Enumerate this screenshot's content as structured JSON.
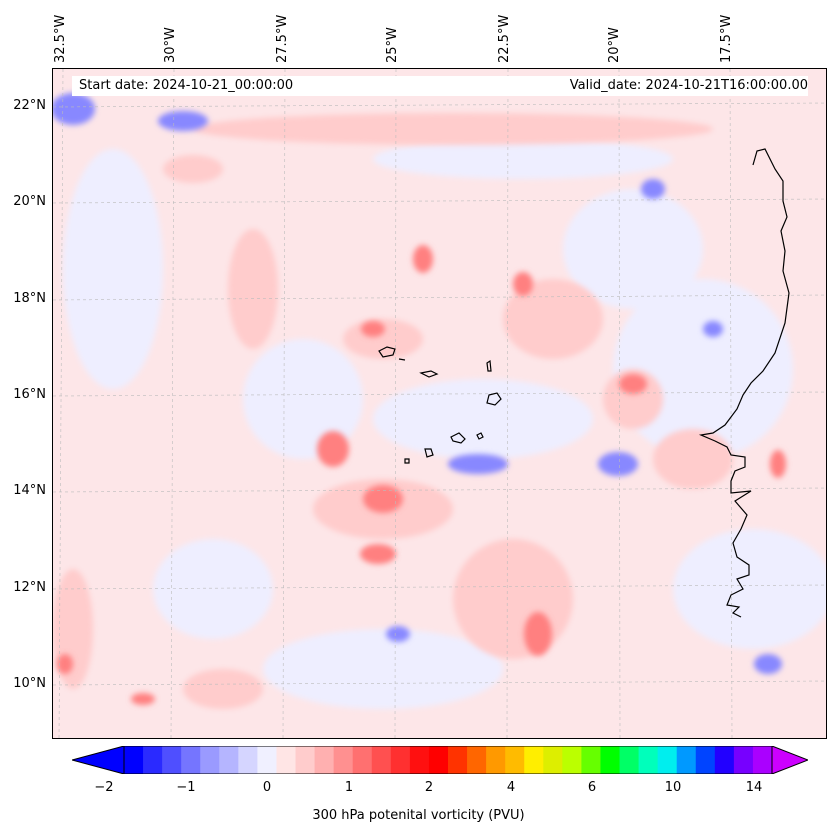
{
  "header": {
    "start_date": "Start date: 2024-10-21_00:00:00",
    "valid_date": "Valid_date: 2024-10-21T16:00:00.00"
  },
  "map": {
    "longitude_labels": [
      "32.5°W",
      "30°W",
      "27.5°W",
      "25°W",
      "22.5°W",
      "20°W",
      "17.5°W"
    ],
    "latitude_labels": [
      "22°N",
      "20°N",
      "18°N",
      "16°N",
      "14°N",
      "12°N",
      "10°N"
    ],
    "field_background_color": "#fde6e8",
    "coastline_color": "#000000"
  },
  "colorbar": {
    "label": "300 hPa potenital vorticity (PVU)",
    "tick_labels": [
      "−2",
      "−1",
      "0",
      "1",
      "2",
      "4",
      "6",
      "10",
      "14"
    ],
    "colors": [
      "#0000ff",
      "#2a2aff",
      "#4f4fff",
      "#7575ff",
      "#9a9aff",
      "#b5b5ff",
      "#d5d5ff",
      "#f0f0ff",
      "#ffe5e5",
      "#ffcccc",
      "#ffb0b0",
      "#ff9090",
      "#ff7070",
      "#ff5050",
      "#ff3030",
      "#ff1010",
      "#ff0000",
      "#ff3300",
      "#ff6600",
      "#ff9900",
      "#ffbb00",
      "#ffee00",
      "#ddee00",
      "#bbff00",
      "#66ff00",
      "#00ff00",
      "#00ff66",
      "#00ffbb",
      "#00eeee",
      "#0099ff",
      "#0044ff",
      "#2200ff",
      "#7700ff",
      "#aa00ff"
    ],
    "under_color": "#0000ff",
    "over_color": "#cc00ff"
  }
}
